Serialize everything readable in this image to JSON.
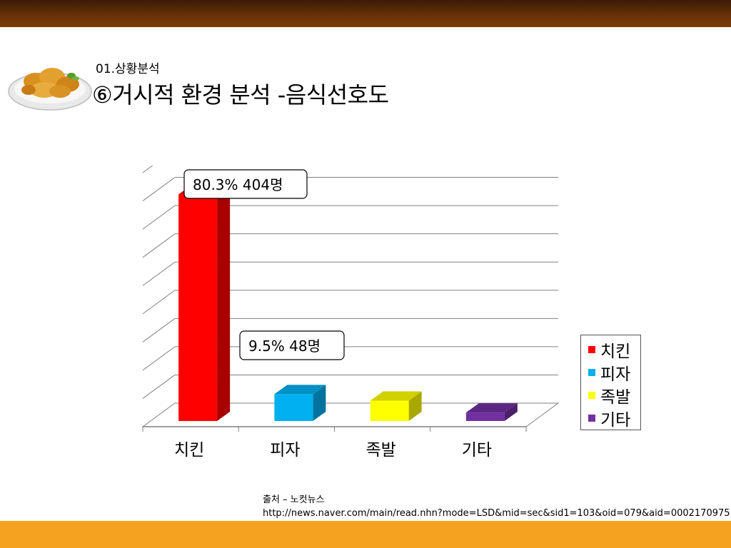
{
  "header": {
    "section": "01.상황분석",
    "title": "⑥거시적 환경 분석 -음식선호도"
  },
  "chart_data": {
    "type": "bar",
    "categories": [
      "치킨",
      "피자",
      "족발",
      "기타"
    ],
    "values": [
      80.3,
      9.5,
      7.2,
      3.0
    ],
    "colors": [
      "#ff0000",
      "#00b0f0",
      "#ffff00",
      "#7030a0"
    ],
    "ylim": [
      0,
      90
    ],
    "grid": true,
    "legend_position": "right",
    "annotations": [
      {
        "category": "치킨",
        "text": "80.3% 404명"
      },
      {
        "category": "피자",
        "text": "9.5% 48명"
      }
    ]
  },
  "legend": {
    "items": [
      {
        "label": "치킨",
        "color": "#ff0000"
      },
      {
        "label": "피자",
        "color": "#00b0f0"
      },
      {
        "label": "족발",
        "color": "#ffff00"
      },
      {
        "label": "기타",
        "color": "#7030a0"
      }
    ]
  },
  "source": {
    "line1": "출처 – 노컷뉴스",
    "line2": "http://news.naver.com/main/read.nhn?mode=LSD&mid=sec&sid1=103&oid=079&aid=0002170975"
  }
}
